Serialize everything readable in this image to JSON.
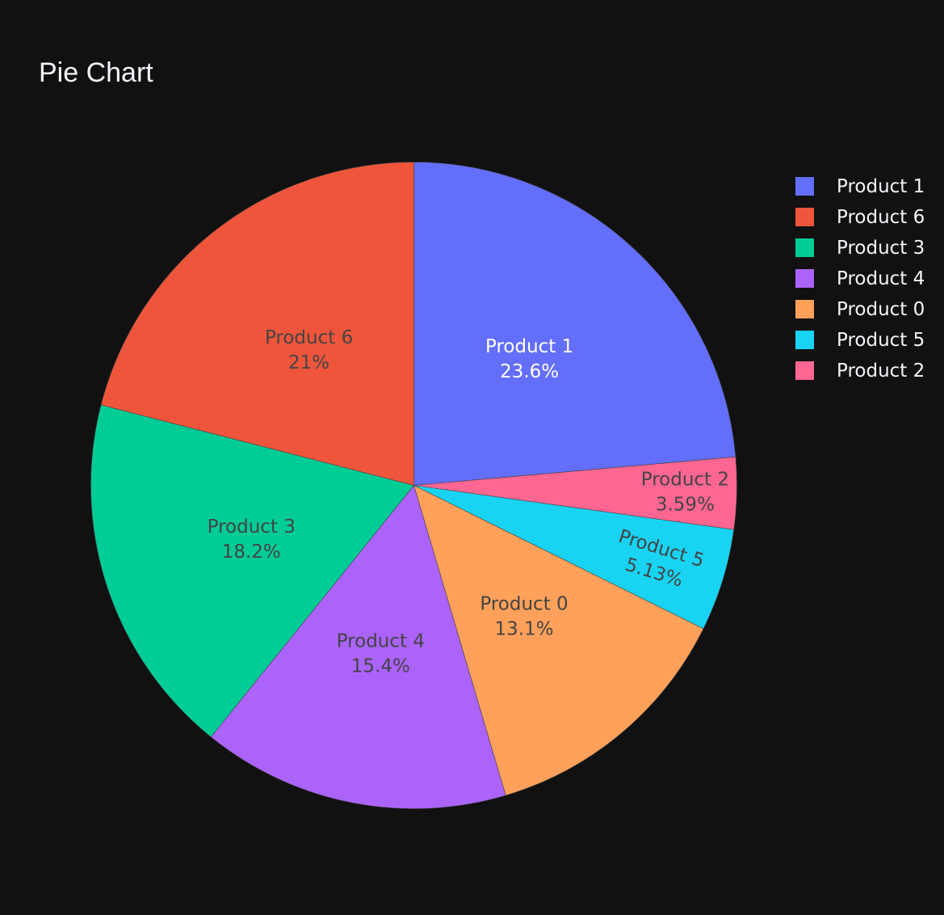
{
  "chart_data": {
    "type": "pie",
    "title": "Pie Chart",
    "direction": "clockwise",
    "start_angle_deg": 90,
    "legend_position": "right",
    "background": "#111111",
    "slice_border_color": "#444444",
    "slices": [
      {
        "label": "Product 1",
        "value": 23.6,
        "percent_text": "23.6%",
        "color": "#636efa",
        "text_color": "#ffffff"
      },
      {
        "label": "Product 2",
        "value": 3.59,
        "percent_text": "3.59%",
        "color": "#ff6692",
        "text_color": "#444444"
      },
      {
        "label": "Product 5",
        "value": 5.13,
        "percent_text": "5.13%",
        "color": "#19d3f3",
        "text_color": "#444444"
      },
      {
        "label": "Product 0",
        "value": 13.1,
        "percent_text": "13.1%",
        "color": "#ffa15a",
        "text_color": "#444444"
      },
      {
        "label": "Product 4",
        "value": 15.4,
        "percent_text": "15.4%",
        "color": "#ab63fa",
        "text_color": "#444444"
      },
      {
        "label": "Product 3",
        "value": 18.2,
        "percent_text": "18.2%",
        "color": "#00cc96",
        "text_color": "#444444"
      },
      {
        "label": "Product 6",
        "value": 21.0,
        "percent_text": "21%",
        "color": "#ef553b",
        "text_color": "#444444"
      }
    ],
    "legend": [
      {
        "label": "Product 1",
        "color": "#636efa"
      },
      {
        "label": "Product 6",
        "color": "#ef553b"
      },
      {
        "label": "Product 3",
        "color": "#00cc96"
      },
      {
        "label": "Product 4",
        "color": "#ab63fa"
      },
      {
        "label": "Product 0",
        "color": "#ffa15a"
      },
      {
        "label": "Product 5",
        "color": "#19d3f3"
      },
      {
        "label": "Product 2",
        "color": "#ff6692"
      }
    ]
  }
}
